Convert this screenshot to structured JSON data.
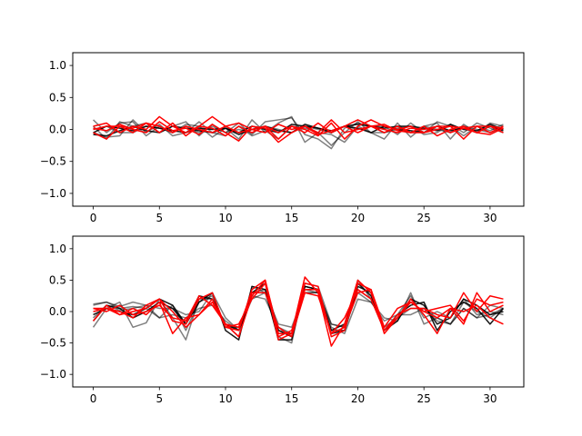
{
  "chart_data": [
    {
      "type": "line",
      "title": "",
      "xlabel": "",
      "ylabel": "",
      "xlim": [
        -1.55,
        32.55
      ],
      "ylim": [
        -1.2,
        1.2
      ],
      "xticks": [
        0,
        5,
        10,
        15,
        20,
        25,
        30
      ],
      "xtick_labels": [
        "0",
        "5",
        "10",
        "15",
        "20",
        "25",
        "30"
      ],
      "yticks": [
        -1.0,
        -0.5,
        0.0,
        0.5,
        1.0
      ],
      "ytick_labels": [
        "−1.0",
        "−0.5",
        "0.0",
        "0.5",
        "1.0"
      ],
      "grid": false,
      "legend": "none",
      "x": [
        0,
        1,
        2,
        3,
        4,
        5,
        6,
        7,
        8,
        9,
        10,
        11,
        12,
        13,
        14,
        15,
        16,
        17,
        18,
        19,
        20,
        21,
        22,
        23,
        24,
        25,
        26,
        27,
        28,
        29,
        30,
        31
      ],
      "series": [
        {
          "color": "#000000",
          "opacity": 0.5,
          "values": [
            0.15,
            -0.05,
            0.1,
            0.12,
            -0.1,
            0.05,
            -0.05,
            0.08,
            0.05,
            -0.12,
            0.02,
            -0.15,
            0.15,
            -0.05,
            0.1,
            0.2,
            -0.2,
            -0.05,
            -0.25,
            -0.05,
            0.12,
            -0.05,
            -0.15,
            0.1,
            -0.12,
            0.05,
            0.1,
            -0.15,
            0.08,
            -0.05,
            0.1,
            0.05
          ]
        },
        {
          "color": "#000000",
          "opacity": 0.5,
          "values": [
            0.05,
            -0.15,
            0.12,
            0.05,
            0.1,
            -0.05,
            0.05,
            0.12,
            -0.1,
            0.08,
            -0.05,
            0.1,
            -0.08,
            0.12,
            0.15,
            0.18,
            -0.08,
            -0.15,
            -0.3,
            0.02,
            0.1,
            0.05,
            0.05,
            -0.08,
            0.1,
            -0.05,
            0.12,
            0.05,
            -0.1,
            0.05,
            -0.02,
            0.08
          ]
        },
        {
          "color": "#000000",
          "opacity": 0.5,
          "values": [
            -0.05,
            -0.12,
            -0.1,
            0.15,
            -0.05,
            0.08,
            -0.1,
            -0.05,
            0.12,
            -0.05,
            -0.1,
            0.05,
            -0.1,
            -0.02,
            -0.15,
            0.05,
            0.02,
            -0.05,
            -0.08,
            -0.2,
            0.05,
            -0.05,
            -0.05,
            0.02,
            0.05,
            -0.08,
            -0.05,
            0.08,
            -0.05,
            0.1,
            0.02,
            -0.05
          ]
        },
        {
          "color": "#000000",
          "opacity": 0.5,
          "values": [
            0.0,
            0.05,
            -0.05,
            -0.05,
            0.05,
            0.02,
            -0.05,
            0.05,
            -0.05,
            0.05,
            -0.05,
            0.0,
            -0.05,
            0.05,
            0.0,
            -0.05,
            0.05,
            0.0,
            -0.05,
            0.05,
            0.0,
            0.05,
            -0.05,
            0.0,
            -0.05,
            0.05,
            0.0,
            -0.05,
            0.05,
            0.0,
            -0.05,
            0.02
          ]
        },
        {
          "color": "#000000",
          "opacity": 0.9,
          "values": [
            -0.08,
            -0.1,
            -0.02,
            0.05,
            -0.02,
            -0.05,
            0.05,
            0.02,
            -0.02,
            -0.05,
            0.02,
            -0.08,
            0.0,
            0.05,
            -0.02,
            -0.05,
            0.08,
            0.02,
            -0.05,
            0.05,
            0.02,
            -0.05,
            0.05,
            0.0,
            -0.02,
            -0.05,
            0.05,
            -0.02,
            0.02,
            -0.05,
            0.05,
            -0.02
          ]
        },
        {
          "color": "#000000",
          "opacity": 0.9,
          "values": [
            -0.05,
            0.05,
            0.02,
            -0.02,
            0.05,
            0.02,
            -0.02,
            -0.05,
            0.02,
            0.0,
            0.02,
            -0.05,
            0.05,
            0.0,
            -0.05,
            0.08,
            0.05,
            0.02,
            -0.02,
            0.05,
            0.08,
            0.05,
            0.02,
            0.05,
            0.05,
            0.02,
            -0.02,
            0.08,
            0.0,
            -0.02,
            0.08,
            0.0
          ]
        },
        {
          "color": "#ff0000",
          "opacity": 1,
          "values": [
            0.05,
            0.1,
            -0.05,
            0.05,
            0.0,
            0.2,
            0.05,
            -0.05,
            0.05,
            0.2,
            0.05,
            -0.05,
            0.0,
            0.05,
            -0.05,
            0.05,
            -0.05,
            0.1,
            -0.05,
            0.05,
            0.15,
            0.05,
            -0.05,
            0.05,
            -0.05,
            0.05,
            -0.1,
            0.0,
            0.05,
            -0.05,
            0.05,
            0.02
          ]
        },
        {
          "color": "#ff0000",
          "opacity": 1,
          "values": [
            -0.05,
            -0.15,
            0.05,
            0.02,
            0.1,
            -0.05,
            0.1,
            -0.1,
            0.05,
            0.02,
            -0.1,
            0.05,
            -0.05,
            0.05,
            -0.15,
            0.05,
            0.0,
            -0.1,
            0.1,
            -0.15,
            0.05,
            0.15,
            0.05,
            0.0,
            0.05,
            -0.05,
            0.05,
            0.05,
            -0.15,
            0.05,
            0.05,
            -0.05
          ]
        },
        {
          "color": "#ff0000",
          "opacity": 1,
          "values": [
            0.0,
            0.05,
            0.05,
            -0.05,
            0.1,
            0.05,
            -0.05,
            0.05,
            0.0,
            -0.05,
            0.05,
            0.1,
            0.0,
            -0.05,
            0.08,
            0.0,
            0.05,
            -0.05,
            0.15,
            -0.05,
            0.0,
            0.05,
            0.0,
            -0.05,
            0.02,
            0.0,
            0.05,
            -0.05,
            0.02,
            0.05,
            -0.05,
            0.05
          ]
        },
        {
          "color": "#ff0000",
          "opacity": 1,
          "values": [
            0.02,
            -0.02,
            0.08,
            0.0,
            -0.05,
            0.12,
            -0.02,
            0.02,
            -0.08,
            0.08,
            -0.05,
            -0.18,
            0.05,
            0.02,
            -0.2,
            -0.05,
            0.05,
            -0.08,
            -0.02,
            0.05,
            -0.05,
            0.05,
            0.08,
            -0.02,
            -0.05,
            -0.05,
            0.0,
            0.05,
            0.02,
            -0.05,
            -0.08,
            0.02
          ]
        }
      ]
    },
    {
      "type": "line",
      "title": "",
      "xlabel": "",
      "ylabel": "",
      "xlim": [
        -1.55,
        32.55
      ],
      "ylim": [
        -1.2,
        1.2
      ],
      "xticks": [
        0,
        5,
        10,
        15,
        20,
        25,
        30
      ],
      "xtick_labels": [
        "0",
        "5",
        "10",
        "15",
        "20",
        "25",
        "30"
      ],
      "yticks": [
        -1.0,
        -0.5,
        0.0,
        0.5,
        1.0
      ],
      "ytick_labels": [
        "−1.0",
        "−0.5",
        "0.0",
        "0.5",
        "1.0"
      ],
      "grid": false,
      "legend": "none",
      "x": [
        0,
        1,
        2,
        3,
        4,
        5,
        6,
        7,
        8,
        9,
        10,
        11,
        12,
        13,
        14,
        15,
        16,
        17,
        18,
        19,
        20,
        21,
        22,
        23,
        24,
        25,
        26,
        27,
        28,
        29,
        30,
        31
      ],
      "series": [
        {
          "color": "#000000",
          "opacity": 0.5,
          "values": [
            0.12,
            0.15,
            0.08,
            0.15,
            0.1,
            0.05,
            0.05,
            -0.05,
            0.0,
            0.3,
            -0.1,
            -0.3,
            0.2,
            0.3,
            -0.2,
            -0.25,
            0.3,
            0.3,
            -0.2,
            -0.25,
            0.3,
            0.15,
            -0.1,
            -0.15,
            0.3,
            -0.2,
            -0.1,
            -0.2,
            0.05,
            -0.1,
            0.1,
            0.05
          ]
        },
        {
          "color": "#000000",
          "opacity": 0.5,
          "values": [
            -0.25,
            0.05,
            0.15,
            -0.25,
            -0.18,
            0.2,
            -0.1,
            -0.45,
            0.2,
            0.2,
            -0.2,
            -0.4,
            0.4,
            0.3,
            -0.4,
            -0.5,
            0.45,
            0.4,
            -0.2,
            -0.25,
            0.5,
            0.2,
            -0.3,
            -0.05,
            0.25,
            -0.1,
            0.0,
            -0.1,
            0.2,
            -0.05,
            0.0,
            -0.05
          ]
        },
        {
          "color": "#000000",
          "opacity": 0.5,
          "values": [
            -0.1,
            0.1,
            0.02,
            0.05,
            0.1,
            -0.1,
            0.1,
            -0.3,
            0.15,
            0.25,
            -0.25,
            -0.25,
            0.3,
            0.35,
            -0.3,
            -0.35,
            0.35,
            0.3,
            -0.3,
            -0.3,
            0.35,
            0.2,
            -0.25,
            -0.1,
            0.05,
            0.05,
            -0.1,
            -0.2,
            0.15,
            0.0,
            -0.1,
            0.05
          ]
        },
        {
          "color": "#000000",
          "opacity": 0.5,
          "values": [
            0.1,
            0.15,
            0.05,
            0.08,
            0.05,
            -0.1,
            -0.05,
            -0.1,
            0.05,
            0.1,
            -0.15,
            -0.3,
            0.25,
            0.2,
            -0.25,
            -0.35,
            0.3,
            0.3,
            -0.25,
            -0.35,
            0.2,
            0.15,
            -0.15,
            -0.05,
            -0.05,
            0.05,
            -0.15,
            -0.2,
            0.05,
            -0.1,
            -0.05,
            0.05
          ]
        },
        {
          "color": "#000000",
          "opacity": 0.9,
          "values": [
            -0.15,
            0.1,
            0.05,
            -0.1,
            0.0,
            0.15,
            0.05,
            -0.2,
            0.15,
            0.3,
            -0.3,
            -0.45,
            0.4,
            0.35,
            -0.45,
            -0.45,
            0.4,
            0.35,
            -0.35,
            -0.3,
            0.4,
            0.3,
            -0.3,
            -0.15,
            0.2,
            0.1,
            -0.2,
            -0.1,
            0.2,
            0.1,
            -0.05,
            0.0
          ]
        },
        {
          "color": "#000000",
          "opacity": 0.9,
          "values": [
            -0.05,
            0.05,
            0.0,
            -0.05,
            0.05,
            0.2,
            0.1,
            -0.2,
            0.25,
            0.2,
            -0.2,
            -0.3,
            0.3,
            0.45,
            -0.3,
            -0.4,
            0.4,
            0.35,
            -0.3,
            -0.2,
            0.45,
            0.25,
            -0.3,
            -0.05,
            0.1,
            0.15,
            -0.3,
            0.0,
            0.15,
            0.05,
            -0.2,
            0.05
          ]
        },
        {
          "color": "#ff0000",
          "opacity": 1,
          "values": [
            0.05,
            0.05,
            -0.05,
            0.0,
            0.05,
            0.2,
            -0.15,
            -0.2,
            0.2,
            0.3,
            -0.25,
            -0.3,
            0.35,
            0.5,
            -0.35,
            -0.35,
            0.55,
            0.3,
            -0.55,
            -0.2,
            0.5,
            0.3,
            -0.3,
            -0.1,
            0.15,
            0.0,
            -0.1,
            0.05,
            -0.2,
            0.3,
            0.0,
            0.1
          ]
        },
        {
          "color": "#ff0000",
          "opacity": 1,
          "values": [
            -0.15,
            0.1,
            -0.05,
            0.05,
            -0.05,
            0.15,
            -0.35,
            -0.1,
            -0.05,
            0.2,
            -0.25,
            -0.2,
            0.2,
            0.45,
            -0.45,
            -0.35,
            0.45,
            0.4,
            -0.4,
            -0.3,
            0.45,
            0.35,
            -0.35,
            -0.1,
            0.2,
            -0.05,
            -0.35,
            0.05,
            0.0,
            0.1,
            -0.1,
            -0.2
          ]
        },
        {
          "color": "#ff0000",
          "opacity": 1,
          "values": [
            0.0,
            0.05,
            0.0,
            -0.1,
            0.1,
            0.2,
            0.0,
            -0.25,
            -0.05,
            0.15,
            -0.2,
            -0.4,
            0.25,
            0.5,
            -0.4,
            -0.3,
            0.35,
            0.35,
            -0.35,
            -0.25,
            0.3,
            0.35,
            -0.25,
            0.05,
            0.15,
            0.0,
            0.05,
            0.1,
            -0.15,
            0.2,
            0.1,
            0.15
          ]
        },
        {
          "color": "#ff0000",
          "opacity": 1,
          "values": [
            0.05,
            0.0,
            0.1,
            -0.05,
            0.0,
            0.1,
            -0.1,
            -0.15,
            0.25,
            0.1,
            -0.2,
            -0.25,
            0.3,
            0.3,
            -0.25,
            -0.4,
            0.3,
            0.25,
            -0.35,
            -0.1,
            0.35,
            0.2,
            -0.3,
            -0.05,
            0.05,
            0.05,
            -0.05,
            -0.1,
            0.3,
            0.0,
            0.25,
            0.2
          ]
        }
      ]
    }
  ]
}
